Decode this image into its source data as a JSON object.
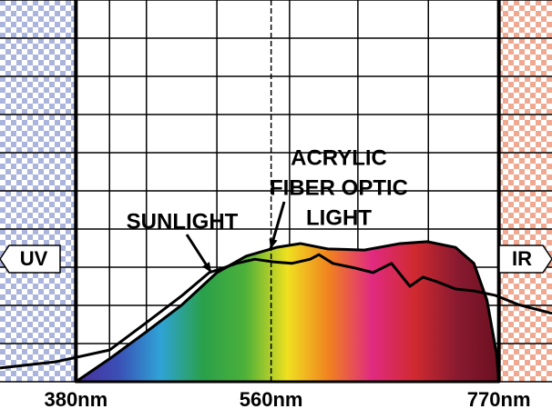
{
  "chart_data": {
    "type": "spectrum",
    "xlim": [
      310,
      819
    ],
    "ylim": [
      0,
      10
    ],
    "xticks": [
      {
        "value": 380,
        "label": "380nm"
      },
      {
        "value": 560,
        "label": "560nm"
      },
      {
        "value": 770,
        "label": "770nm"
      }
    ],
    "xgrid": [
      380,
      411,
      445,
      510,
      577,
      640,
      705,
      770
    ],
    "ygrid": [
      1,
      2,
      3,
      4,
      5,
      6,
      7,
      8,
      9,
      10
    ],
    "regions": [
      {
        "label": "UV",
        "range": [
          310,
          380
        ],
        "color": "#aab4dc"
      },
      {
        "label": "IR",
        "range": [
          770,
          819
        ],
        "color": "#f0a890"
      }
    ],
    "series": [
      {
        "label": [
          "SUNLIGHT"
        ],
        "color": "#000000",
        "x": [
          310,
          361,
          411,
          445,
          478,
          503,
          516,
          528,
          545,
          562,
          579,
          596,
          604,
          617,
          637,
          654,
          671,
          688,
          700,
          713,
          730,
          747,
          767,
          788,
          819
        ],
        "values": [
          0.36,
          0.52,
          0.83,
          1.55,
          2.26,
          2.86,
          2.98,
          3.1,
          3.21,
          3.14,
          3.1,
          3.21,
          3.33,
          3.1,
          2.98,
          2.86,
          3.1,
          2.5,
          2.74,
          2.62,
          2.43,
          2.38,
          2.26,
          2.02,
          1.79
        ]
      },
      {
        "label": [
          "ACRYLIC",
          "FIBER OPTIC",
          "LIGHT"
        ],
        "color": "#000000",
        "fill_colors": [
          "#4a2f9a",
          "#3a4fb5",
          "#2fa3d6",
          "#2aa04a",
          "#4cb03a",
          "#f0e020",
          "#f08020",
          "#e02a80",
          "#d02a30",
          "#8a1a30",
          "#6a1020"
        ],
        "x": [
          380,
          411,
          445,
          478,
          510,
          537,
          565,
          587,
          612,
          646,
          679,
          704,
          730,
          747,
          759,
          768,
          770
        ],
        "values": [
          0,
          0.6,
          1.31,
          2.02,
          2.86,
          3.29,
          3.52,
          3.62,
          3.48,
          3.45,
          3.62,
          3.67,
          3.52,
          3.1,
          2.14,
          0.71,
          0
        ]
      }
    ]
  }
}
